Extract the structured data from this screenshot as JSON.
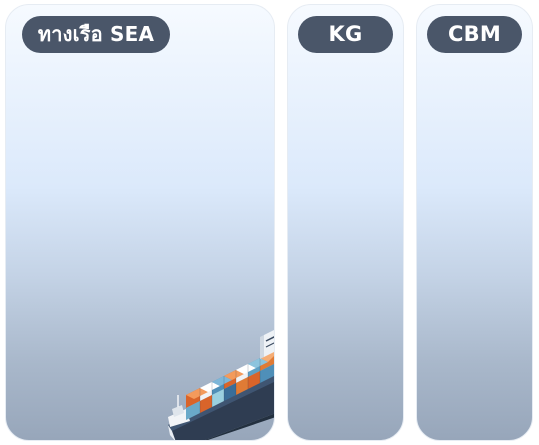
{
  "columns": {
    "sea": {
      "label": "ทางเรือ SEA"
    },
    "kg": {
      "label": "KG"
    },
    "cbm": {
      "label": "CBM"
    }
  },
  "colors": {
    "pill_background": "#4a5669",
    "pill_text": "#ffffff",
    "panel_top": "#f6faff",
    "panel_bottom": "#97a6ba"
  },
  "icons": {
    "ship": "container-ship-icon"
  }
}
